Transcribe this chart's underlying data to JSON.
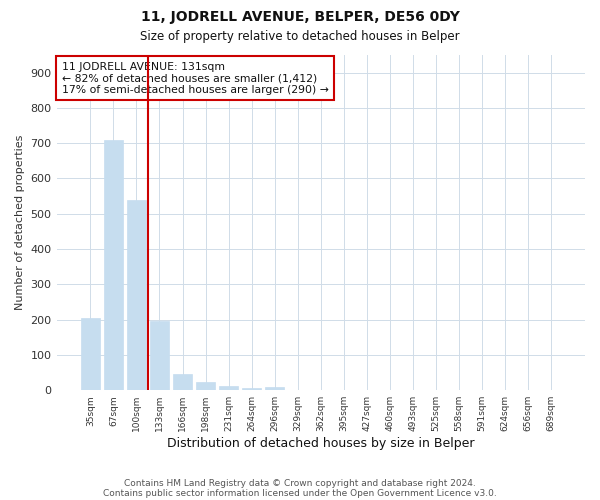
{
  "title": "11, JODRELL AVENUE, BELPER, DE56 0DY",
  "subtitle": "Size of property relative to detached houses in Belper",
  "xlabel": "Distribution of detached houses by size in Belper",
  "ylabel": "Number of detached properties",
  "footer_line1": "Contains HM Land Registry data © Crown copyright and database right 2024.",
  "footer_line2": "Contains public sector information licensed under the Open Government Licence v3.0.",
  "bin_labels": [
    "35sqm",
    "67sqm",
    "100sqm",
    "133sqm",
    "166sqm",
    "198sqm",
    "231sqm",
    "264sqm",
    "296sqm",
    "329sqm",
    "362sqm",
    "395sqm",
    "427sqm",
    "460sqm",
    "493sqm",
    "525sqm",
    "558sqm",
    "591sqm",
    "624sqm",
    "656sqm",
    "689sqm"
  ],
  "bar_values": [
    205,
    710,
    540,
    195,
    45,
    22,
    12,
    5,
    8,
    0,
    0,
    0,
    0,
    0,
    0,
    0,
    0,
    0,
    0,
    0,
    0
  ],
  "bar_color": "#c6ddef",
  "marker_bin_index": 3,
  "marker_color": "#cc0000",
  "ylim": [
    0,
    950
  ],
  "yticks": [
    0,
    100,
    200,
    300,
    400,
    500,
    600,
    700,
    800,
    900
  ],
  "annotation_title": "11 JODRELL AVENUE: 131sqm",
  "annotation_line1": "← 82% of detached houses are smaller (1,412)",
  "annotation_line2": "17% of semi-detached houses are larger (290) →",
  "grid_color": "#d0dce8",
  "background_color": "#ffffff"
}
